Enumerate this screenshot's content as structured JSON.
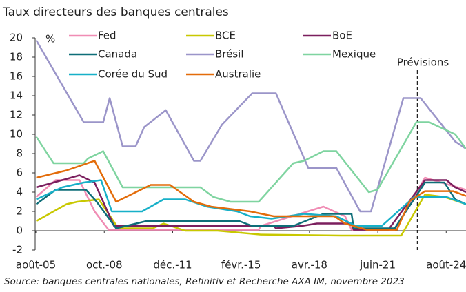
{
  "chart_data": {
    "type": "line",
    "title": "Taux directeurs des banques centrales",
    "y_unit": "%",
    "source": "Source: banques centrales nationales, Refinitiv et Recherche AXA IM, novembre 2023",
    "annotation": {
      "text": "Prévisions",
      "x": 2023.25
    },
    "xlim": [
      2005.55,
      2025.5
    ],
    "xticks": [
      {
        "value": 2005.583,
        "label": "août-05"
      },
      {
        "value": 2008.75,
        "label": "oct.-08"
      },
      {
        "value": 2011.917,
        "label": "déc.-11"
      },
      {
        "value": 2015.083,
        "label": "févr.-15"
      },
      {
        "value": 2018.25,
        "label": "avr.-18"
      },
      {
        "value": 2021.417,
        "label": "juin-21"
      },
      {
        "value": 2024.583,
        "label": "août-24"
      }
    ],
    "ylim": [
      -2,
      20
    ],
    "yticks": [
      -2,
      0,
      2,
      4,
      6,
      8,
      10,
      12,
      14,
      16,
      18,
      20
    ],
    "grid": false,
    "series": [
      {
        "name": "Fed",
        "color": "#f08cb4",
        "x": [
          2005.6,
          2006.5,
          2007.6,
          2008.3,
          2008.95,
          2015.9,
          2016.0,
          2018.9,
          2019.9,
          2020.2,
          2022.2,
          2023.6,
          2025.5
        ],
        "values": [
          3.5,
          5.25,
          5.25,
          2,
          0.1,
          0.1,
          0.5,
          2.5,
          1.5,
          0.1,
          0.1,
          5.5,
          4.25
        ]
      },
      {
        "name": "BCE",
        "color": "#c8c800",
        "x": [
          2005.6,
          2007.0,
          2007.5,
          2008.5,
          2009.4,
          2011.0,
          2011.5,
          2012.5,
          2014.0,
          2014.5,
          2016.0,
          2019.7,
          2022.5,
          2023.6,
          2024.5,
          2025.5
        ],
        "values": [
          1,
          2.75,
          3,
          3.25,
          0.25,
          0.25,
          0.75,
          0,
          0,
          -0.1,
          -0.4,
          -0.5,
          -0.5,
          3.75,
          3.5,
          2.75
        ]
      },
      {
        "name": "BoE",
        "color": "#7b1f5e",
        "x": [
          2005.6,
          2007.6,
          2008.3,
          2009.2,
          2016.6,
          2016.7,
          2017.9,
          2018.6,
          2020.2,
          2020.3,
          2021.9,
          2023.6,
          2024.6,
          2025.0,
          2025.5
        ],
        "values": [
          4.5,
          5.75,
          5,
          0.5,
          0.5,
          0.25,
          0.5,
          0.75,
          0.75,
          0.1,
          0.1,
          5.25,
          5.25,
          4.5,
          4
        ]
      },
      {
        "name": "Canada",
        "color": "#0e6e78",
        "x": [
          2005.6,
          2006.5,
          2007.9,
          2008.4,
          2009.3,
          2010.7,
          2015.0,
          2015.6,
          2017.5,
          2018.9,
          2020.2,
          2020.3,
          2022.2,
          2023.6,
          2024.5,
          2025.0,
          2025.5
        ],
        "values": [
          2.75,
          4.25,
          4.25,
          3,
          0.25,
          1,
          1,
          0.5,
          0.5,
          1.75,
          1.75,
          0.25,
          0.25,
          5,
          5,
          3.25,
          2.75
        ]
      },
      {
        "name": "Brésil",
        "color": "#9b95c9",
        "x": [
          2005.6,
          2007.8,
          2008.7,
          2009.0,
          2009.6,
          2010.2,
          2010.6,
          2011.6,
          2012.9,
          2013.2,
          2014.2,
          2015.6,
          2016.7,
          2018.2,
          2019.5,
          2020.6,
          2021.1,
          2022.6,
          2023.4,
          2025.0,
          2025.5
        ],
        "values": [
          19.75,
          11.25,
          11.25,
          13.75,
          8.75,
          8.75,
          10.75,
          12.5,
          7.25,
          7.25,
          11,
          14.25,
          14.25,
          6.5,
          6.5,
          2,
          2,
          13.75,
          13.75,
          9.25,
          8.5
        ]
      },
      {
        "name": "Mexique",
        "color": "#7fd4a0",
        "x": [
          2005.6,
          2006.4,
          2007.8,
          2008.0,
          2008.7,
          2009.6,
          2013.2,
          2013.8,
          2014.6,
          2015.9,
          2016.0,
          2017.5,
          2018.0,
          2018.9,
          2019.5,
          2021.0,
          2021.4,
          2023.2,
          2023.8,
          2025.0,
          2025.5
        ],
        "values": [
          9.75,
          7,
          7,
          7.5,
          8.25,
          4.5,
          4.5,
          3.5,
          3,
          3,
          3.25,
          7,
          7.25,
          8.25,
          8.25,
          4,
          4.25,
          11.25,
          11.25,
          10,
          8.5
        ]
      },
      {
        "name": "Corée du Sud",
        "color": "#17b0c8",
        "x": [
          2005.6,
          2006.8,
          2007.8,
          2008.6,
          2009.1,
          2010.5,
          2011.5,
          2012.5,
          2013.5,
          2014.9,
          2015.5,
          2016.5,
          2018.0,
          2019.5,
          2020.4,
          2021.6,
          2023.1,
          2024.6,
          2025.5
        ],
        "values": [
          3.25,
          4.5,
          5,
          5.25,
          2,
          2,
          3.25,
          3.25,
          2.5,
          2,
          1.5,
          1.25,
          1.75,
          1.5,
          0.5,
          0.5,
          3.5,
          3.5,
          2.75
        ]
      },
      {
        "name": "Australie",
        "color": "#e36c0a",
        "x": [
          2005.6,
          2007.0,
          2008.3,
          2009.3,
          2010.9,
          2011.8,
          2012.9,
          2013.7,
          2015.5,
          2016.6,
          2019.4,
          2019.9,
          2020.9,
          2022.3,
          2022.9,
          2023.6,
          2024.9,
          2025.5
        ],
        "values": [
          5.5,
          6.25,
          7.25,
          3,
          4.75,
          4.75,
          3,
          2.5,
          2,
          1.5,
          1.5,
          0.75,
          0.1,
          0.1,
          3.1,
          4.1,
          4.1,
          3.6
        ]
      }
    ]
  }
}
